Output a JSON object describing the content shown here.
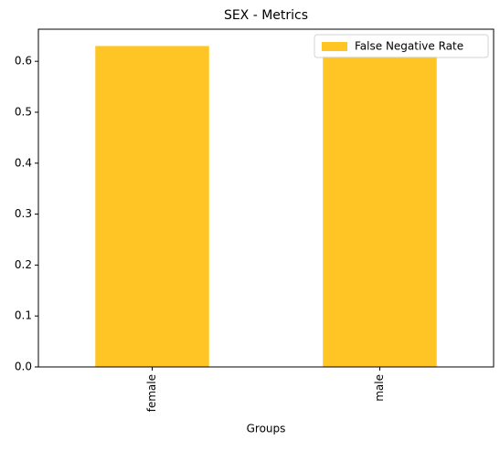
{
  "chart_data": {
    "type": "bar",
    "title": "SEX - Metrics",
    "x_label": "Groups",
    "categories": [
      "female",
      "male"
    ],
    "series": [
      {
        "name": "False Negative Rate",
        "color": "#fec524",
        "values": [
          0.63,
          0.61
        ]
      }
    ],
    "ylim": [
      0,
      0.663
    ],
    "yticks": [
      0.0,
      0.1,
      0.2,
      0.3,
      0.4,
      0.5,
      0.6
    ],
    "yticks_labels": [
      "0.0",
      "0.1",
      "0.2",
      "0.3",
      "0.4",
      "0.5",
      "0.6"
    ],
    "legend": "upper right",
    "grid": false
  }
}
